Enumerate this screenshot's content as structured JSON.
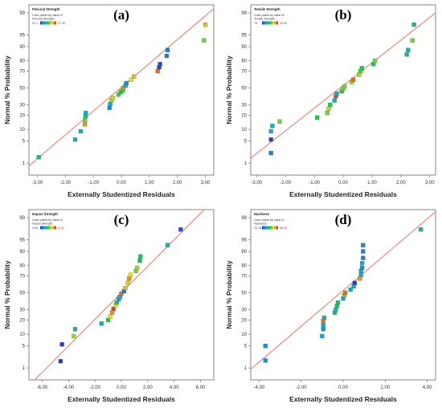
{
  "chart_data": [
    {
      "type": "scatter",
      "panel_label": "(a)",
      "title": "Flexural Strength",
      "legend_caption": "Color points by value of",
      "legend_variable": "Flexural Strength:",
      "color_range": [
        "22.1",
        "97.46"
      ],
      "xlabel": "Externally Studentized Residuals",
      "ylabel": "Normal % Probability",
      "xlim": [
        -3.3,
        3.3
      ],
      "xticks": [
        "-3.00",
        "-2.00",
        "-1.00",
        "0.00",
        "1.00",
        "2.00",
        "3.00"
      ],
      "yticks": [
        1,
        5,
        10,
        20,
        30,
        50,
        70,
        80,
        90,
        95,
        99
      ],
      "points": [
        {
          "x": -2.95,
          "y": 1.6,
          "c": 0.35
        },
        {
          "x": -1.65,
          "y": 5.5,
          "c": 0.35
        },
        {
          "x": -1.45,
          "y": 9,
          "c": 0.3
        },
        {
          "x": -1.3,
          "y": 13,
          "c": 0.85
        },
        {
          "x": -1.3,
          "y": 16,
          "c": 0.6
        },
        {
          "x": -1.28,
          "y": 19,
          "c": 0.45
        },
        {
          "x": -1.27,
          "y": 22,
          "c": 0.25
        },
        {
          "x": -0.42,
          "y": 27,
          "c": 0.2
        },
        {
          "x": -0.4,
          "y": 31,
          "c": 0.25
        },
        {
          "x": -0.35,
          "y": 35,
          "c": 0.65
        },
        {
          "x": -0.3,
          "y": 38,
          "c": 0.7
        },
        {
          "x": -0.1,
          "y": 42,
          "c": 0.55
        },
        {
          "x": -0.02,
          "y": 45,
          "c": 0.5
        },
        {
          "x": 0.05,
          "y": 47,
          "c": 0.5
        },
        {
          "x": 0.08,
          "y": 50,
          "c": 0.85
        },
        {
          "x": 0.15,
          "y": 53,
          "c": 0.3
        },
        {
          "x": 0.18,
          "y": 56,
          "c": 0.2
        },
        {
          "x": 0.35,
          "y": 60,
          "c": 0.75
        },
        {
          "x": 0.45,
          "y": 64,
          "c": 0.8
        },
        {
          "x": 1.3,
          "y": 70,
          "c": 0.9
        },
        {
          "x": 1.35,
          "y": 74,
          "c": 0.0
        },
        {
          "x": 1.38,
          "y": 77,
          "c": 0.05
        },
        {
          "x": 1.62,
          "y": 84,
          "c": 0.15
        },
        {
          "x": 1.65,
          "y": 88,
          "c": 0.15
        },
        {
          "x": 2.95,
          "y": 93,
          "c": 0.6
        },
        {
          "x": 3.0,
          "y": 97.5,
          "c": 0.8
        }
      ],
      "ref_line": [
        [
          -3.3,
          0.8
        ],
        [
          3.3,
          99.3
        ]
      ]
    },
    {
      "type": "scatter",
      "panel_label": "(b)",
      "title": "Tensile Strength",
      "legend_caption": "Color points by value of",
      "legend_variable": "Tensile Strength:",
      "color_range": [
        "79",
        "90.65"
      ],
      "xlabel": "Externally Studentized Residuals",
      "ylabel": "Normal % Probability",
      "xlim": [
        -3.2,
        3.2
      ],
      "xticks": [
        "-3.00",
        "-2.00",
        "-1.00",
        "0.00",
        "1.00",
        "2.00",
        "3.00"
      ],
      "yticks": [
        1,
        5,
        10,
        20,
        30,
        50,
        70,
        80,
        90,
        95,
        99
      ],
      "points": [
        {
          "x": -2.5,
          "y": 2.2,
          "c": 0.15
        },
        {
          "x": -2.5,
          "y": 5.5,
          "c": 0.0
        },
        {
          "x": -2.5,
          "y": 9,
          "c": 0.3
        },
        {
          "x": -2.45,
          "y": 12,
          "c": 0.3
        },
        {
          "x": -2.2,
          "y": 15,
          "c": 0.6
        },
        {
          "x": -0.9,
          "y": 18,
          "c": 0.5
        },
        {
          "x": -0.55,
          "y": 22,
          "c": 0.6
        },
        {
          "x": -0.5,
          "y": 26,
          "c": 0.7
        },
        {
          "x": -0.45,
          "y": 30,
          "c": 0.5
        },
        {
          "x": -0.3,
          "y": 35,
          "c": 0.25
        },
        {
          "x": -0.25,
          "y": 40,
          "c": 0.95
        },
        {
          "x": -0.22,
          "y": 43,
          "c": 0.3
        },
        {
          "x": -0.05,
          "y": 46,
          "c": 0.5
        },
        {
          "x": 0.0,
          "y": 49,
          "c": 0.6
        },
        {
          "x": 0.05,
          "y": 52,
          "c": 0.6
        },
        {
          "x": 0.3,
          "y": 57,
          "c": 0.65
        },
        {
          "x": 0.35,
          "y": 60,
          "c": 0.9
        },
        {
          "x": 0.55,
          "y": 66,
          "c": 0.65
        },
        {
          "x": 0.6,
          "y": 70,
          "c": 0.55
        },
        {
          "x": 0.65,
          "y": 73,
          "c": 0.5
        },
        {
          "x": 1.05,
          "y": 77,
          "c": 0.45
        },
        {
          "x": 1.1,
          "y": 80,
          "c": 0.6
        },
        {
          "x": 2.2,
          "y": 85,
          "c": 0.35
        },
        {
          "x": 2.25,
          "y": 88,
          "c": 0.35
        },
        {
          "x": 2.4,
          "y": 93,
          "c": 0.6
        },
        {
          "x": 2.45,
          "y": 97.5,
          "c": 0.35
        }
      ],
      "ref_line": [
        [
          -3.2,
          1.5
        ],
        [
          3.2,
          99
        ]
      ]
    },
    {
      "type": "scatter",
      "panel_label": "(c)",
      "title": "Impact Strength",
      "legend_caption": "Color points by value of",
      "legend_variable": "Impact Strength:",
      "color_range": [
        "0.84",
        "2.14"
      ],
      "xlabel": "Externally Studentized Residuals",
      "ylabel": "Normal % Probability",
      "xlim": [
        -7,
        7
      ],
      "xticks": [
        "-6.00",
        "-4.00",
        "-2.00",
        "0.00",
        "2.00",
        "4.00",
        "6.00"
      ],
      "yticks": [
        1,
        5,
        10,
        20,
        30,
        50,
        70,
        80,
        90,
        95,
        99
      ],
      "points": [
        {
          "x": -4.6,
          "y": 1.7,
          "c": 0.0
        },
        {
          "x": -4.5,
          "y": 5.5,
          "c": 0.0
        },
        {
          "x": -3.6,
          "y": 9,
          "c": 0.65
        },
        {
          "x": -3.5,
          "y": 13,
          "c": 0.35
        },
        {
          "x": -1.5,
          "y": 17,
          "c": 0.35
        },
        {
          "x": -1.0,
          "y": 20,
          "c": 0.5
        },
        {
          "x": -0.85,
          "y": 23,
          "c": 0.75
        },
        {
          "x": -0.7,
          "y": 27,
          "c": 0.85
        },
        {
          "x": -0.6,
          "y": 31,
          "c": 0.95
        },
        {
          "x": -0.45,
          "y": 35,
          "c": 0.75
        },
        {
          "x": -0.35,
          "y": 38,
          "c": 0.45
        },
        {
          "x": -0.2,
          "y": 42,
          "c": 0.3
        },
        {
          "x": -0.1,
          "y": 45,
          "c": 0.25
        },
        {
          "x": 0.0,
          "y": 49,
          "c": 0.9
        },
        {
          "x": 0.2,
          "y": 52,
          "c": 0.15
        },
        {
          "x": 0.3,
          "y": 56,
          "c": 0.8
        },
        {
          "x": 0.5,
          "y": 62,
          "c": 0.7
        },
        {
          "x": 0.6,
          "y": 67,
          "c": 0.85
        },
        {
          "x": 0.7,
          "y": 71,
          "c": 0.75
        },
        {
          "x": 1.1,
          "y": 75,
          "c": 0.6
        },
        {
          "x": 1.2,
          "y": 78,
          "c": 0.65
        },
        {
          "x": 1.4,
          "y": 84,
          "c": 0.45
        },
        {
          "x": 1.45,
          "y": 87,
          "c": 0.45
        },
        {
          "x": 3.5,
          "y": 93,
          "c": 0.35
        },
        {
          "x": 4.5,
          "y": 97.5,
          "c": 0.05
        }
      ],
      "ref_line": [
        [
          -7,
          0.2
        ],
        [
          7,
          99.8
        ]
      ]
    },
    {
      "type": "scatter",
      "panel_label": "(d)",
      "title": "Hardness",
      "legend_caption": "Color points by value of",
      "legend_variable": "Hardness:",
      "color_range": [
        "20.78",
        "38.19"
      ],
      "xlabel": "Externally Studentized Residuals",
      "ylabel": "Normal % Probability",
      "xlim": [
        -4.4,
        4.4
      ],
      "xticks": [
        "-4.00",
        "-2.00",
        "0.00",
        "2.00",
        "4.00"
      ],
      "yticks": [
        1,
        5,
        10,
        20,
        30,
        50,
        70,
        80,
        90,
        95,
        99
      ],
      "points": [
        {
          "x": -3.7,
          "y": 1.8,
          "c": 0.2
        },
        {
          "x": -3.7,
          "y": 5.0,
          "c": 0.2
        },
        {
          "x": -1.0,
          "y": 9,
          "c": 0.25
        },
        {
          "x": -0.95,
          "y": 13,
          "c": 0.2
        },
        {
          "x": -0.95,
          "y": 16,
          "c": 0.3
        },
        {
          "x": -0.95,
          "y": 19,
          "c": 0.9
        },
        {
          "x": -0.9,
          "y": 22,
          "c": 0.35
        },
        {
          "x": -0.4,
          "y": 27,
          "c": 0.3
        },
        {
          "x": -0.35,
          "y": 30,
          "c": 0.35
        },
        {
          "x": -0.3,
          "y": 34,
          "c": 0.4
        },
        {
          "x": -0.25,
          "y": 38,
          "c": 0.45
        },
        {
          "x": 0.0,
          "y": 43,
          "c": 0.25
        },
        {
          "x": 0.05,
          "y": 47,
          "c": 0.6
        },
        {
          "x": 0.1,
          "y": 50,
          "c": 0.9
        },
        {
          "x": 0.35,
          "y": 54,
          "c": 0.3
        },
        {
          "x": 0.5,
          "y": 58,
          "c": 0.25
        },
        {
          "x": 0.55,
          "y": 62,
          "c": 0.0
        },
        {
          "x": 0.8,
          "y": 67,
          "c": 0.85
        },
        {
          "x": 0.85,
          "y": 71,
          "c": 0.3
        },
        {
          "x": 0.85,
          "y": 75,
          "c": 0.25
        },
        {
          "x": 0.9,
          "y": 78,
          "c": 0.2
        },
        {
          "x": 0.9,
          "y": 82,
          "c": 0.25
        },
        {
          "x": 0.95,
          "y": 86,
          "c": 0.15
        },
        {
          "x": 0.95,
          "y": 90,
          "c": 0.15
        },
        {
          "x": 0.95,
          "y": 93,
          "c": 0.2
        },
        {
          "x": 3.7,
          "y": 97.5,
          "c": 0.4
        }
      ],
      "ref_line": [
        [
          -4.4,
          0.9
        ],
        [
          4.4,
          99.4
        ]
      ]
    }
  ],
  "colors": {
    "ref_line": "#f08070",
    "axis": "#666666",
    "gradient": [
      "#1e3cd8",
      "#10a8d8",
      "#20c848",
      "#e8e020",
      "#e02020"
    ]
  }
}
